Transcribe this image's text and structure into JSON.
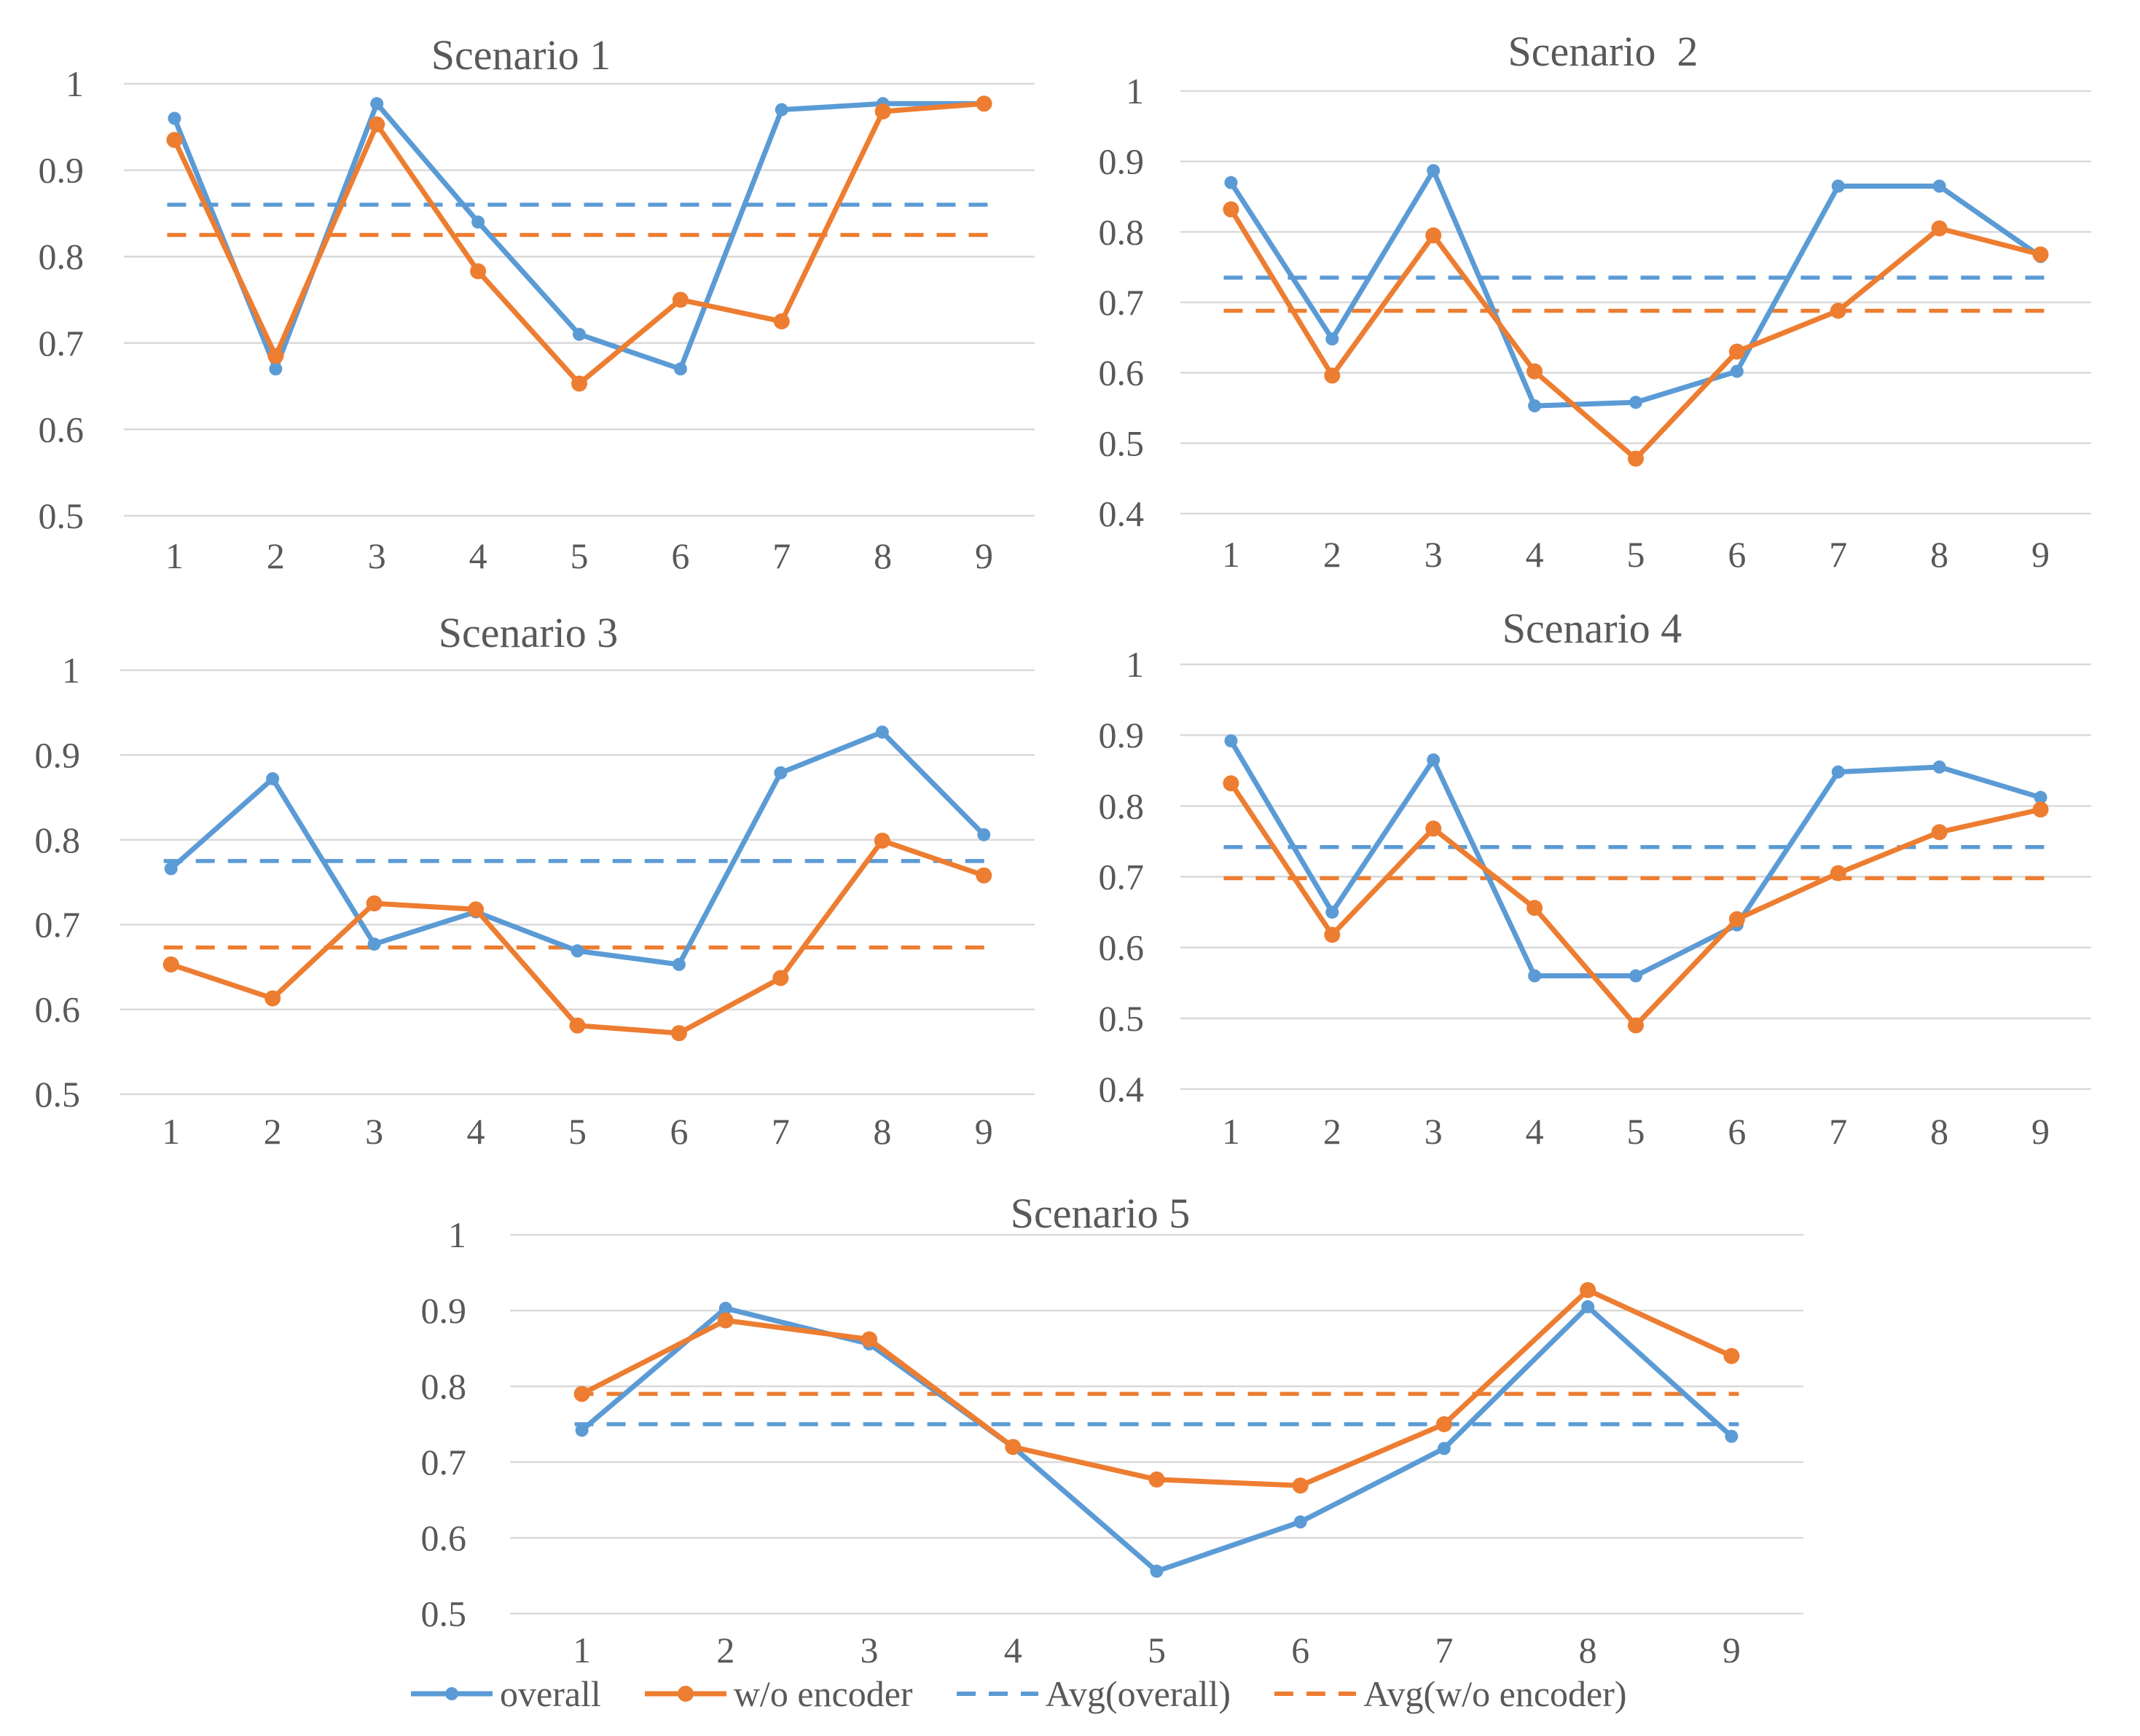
{
  "colors": {
    "overall": "#5b9bd5",
    "wo_encoder": "#ed7d31",
    "grid": "#d9d9d9",
    "text": "#595959"
  },
  "legend": [
    {
      "key": "overall",
      "label": "overall",
      "style": "solid-marker",
      "color": "#5b9bd5"
    },
    {
      "key": "wo_encoder",
      "label": "w/o encoder",
      "style": "solid-marker",
      "color": "#ed7d31"
    },
    {
      "key": "avg_overall",
      "label": "Avg(overall)",
      "style": "dashed",
      "color": "#5b9bd5"
    },
    {
      "key": "avg_wo_encoder",
      "label": "Avg(w/o encoder)",
      "style": "dashed",
      "color": "#ed7d31"
    }
  ],
  "chart_data": [
    {
      "type": "line",
      "title": "Scenario 1",
      "x": [
        1,
        2,
        3,
        4,
        5,
        6,
        7,
        8,
        9
      ],
      "ylim": [
        0.5,
        1
      ],
      "yticks": [
        "0.5",
        "0.6",
        "0.7",
        "0.8",
        "0.9",
        "1"
      ],
      "series": [
        {
          "name": "overall",
          "values": [
            0.96,
            0.67,
            0.977,
            0.84,
            0.71,
            0.67,
            0.97,
            0.977,
            0.977
          ]
        },
        {
          "name": "w/o encoder",
          "values": [
            0.935,
            0.685,
            0.953,
            0.783,
            0.653,
            0.75,
            0.725,
            0.968,
            0.977
          ]
        },
        {
          "name": "Avg(overall)",
          "constant": 0.86
        },
        {
          "name": "Avg(w/o encoder)",
          "constant": 0.825
        }
      ]
    },
    {
      "type": "line",
      "title": "Scenario  2",
      "x": [
        1,
        2,
        3,
        4,
        5,
        6,
        7,
        8,
        9
      ],
      "ylim": [
        0.4,
        1
      ],
      "yticks": [
        "0.4",
        "0.5",
        "0.6",
        "0.7",
        "0.8",
        "0.9",
        "1"
      ],
      "series": [
        {
          "name": "overall",
          "values": [
            0.87,
            0.648,
            0.887,
            0.553,
            0.558,
            0.602,
            0.865,
            0.865,
            0.765
          ]
        },
        {
          "name": "w/o encoder",
          "values": [
            0.832,
            0.596,
            0.795,
            0.602,
            0.478,
            0.63,
            0.688,
            0.805,
            0.768
          ]
        },
        {
          "name": "Avg(overall)",
          "constant": 0.735
        },
        {
          "name": "Avg(w/o encoder)",
          "constant": 0.688
        }
      ]
    },
    {
      "type": "line",
      "title": "Scenario 3",
      "x": [
        1,
        2,
        3,
        4,
        5,
        6,
        7,
        8,
        9
      ],
      "ylim": [
        0.5,
        1
      ],
      "yticks": [
        "0.5",
        "0.6",
        "0.7",
        "0.8",
        "0.9",
        "1"
      ],
      "series": [
        {
          "name": "overall",
          "values": [
            0.766,
            0.872,
            0.677,
            0.715,
            0.669,
            0.653,
            0.879,
            0.927,
            0.806
          ]
        },
        {
          "name": "w/o encoder",
          "values": [
            0.653,
            0.613,
            0.725,
            0.718,
            0.581,
            0.572,
            0.637,
            0.799,
            0.758
          ]
        },
        {
          "name": "Avg(overall)",
          "constant": 0.775
        },
        {
          "name": "Avg(w/o encoder)",
          "constant": 0.673
        }
      ]
    },
    {
      "type": "line",
      "title": "Scenario 4",
      "x": [
        1,
        2,
        3,
        4,
        5,
        6,
        7,
        8,
        9
      ],
      "ylim": [
        0.4,
        1
      ],
      "yticks": [
        "0.4",
        "0.5",
        "0.6",
        "0.7",
        "0.8",
        "0.9",
        "1"
      ],
      "series": [
        {
          "name": "overall",
          "values": [
            0.892,
            0.65,
            0.865,
            0.56,
            0.56,
            0.632,
            0.848,
            0.855,
            0.812
          ]
        },
        {
          "name": "w/o encoder",
          "values": [
            0.832,
            0.618,
            0.768,
            0.656,
            0.49,
            0.64,
            0.705,
            0.763,
            0.795
          ]
        },
        {
          "name": "Avg(overall)",
          "constant": 0.742
        },
        {
          "name": "Avg(w/o encoder)",
          "constant": 0.698
        }
      ]
    },
    {
      "type": "line",
      "title": "Scenario 5",
      "x": [
        1,
        2,
        3,
        4,
        5,
        6,
        7,
        8,
        9
      ],
      "ylim": [
        0.5,
        1
      ],
      "yticks": [
        "0.5",
        "0.6",
        "0.7",
        "0.8",
        "0.9",
        "1"
      ],
      "series": [
        {
          "name": "overall",
          "values": [
            0.742,
            0.903,
            0.856,
            0.72,
            0.556,
            0.621,
            0.718,
            0.905,
            0.734
          ]
        },
        {
          "name": "w/o encoder",
          "values": [
            0.79,
            0.887,
            0.862,
            0.72,
            0.677,
            0.669,
            0.75,
            0.927,
            0.84
          ]
        },
        {
          "name": "Avg(overall)",
          "constant": 0.75
        },
        {
          "name": "Avg(w/o encoder)",
          "constant": 0.79
        }
      ]
    }
  ]
}
